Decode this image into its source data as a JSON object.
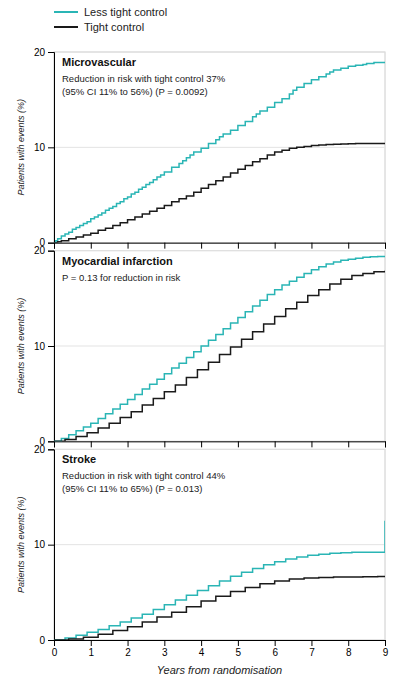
{
  "chart_data": [
    {
      "type": "line",
      "title": "Microvascular",
      "subtitle": [
        "Reduction in risk with tight control 37%",
        "(95% CI 11% to 56%) (P = 0.0092)"
      ],
      "ylabel": "Patients with events (%)",
      "xlim": [
        0,
        9
      ],
      "xticks": [
        0,
        1,
        2,
        3,
        4,
        5,
        6,
        7,
        8,
        9
      ],
      "ylim": [
        0,
        20
      ],
      "yticks": [
        0,
        10,
        20
      ],
      "grid": true,
      "tick_labels": "y",
      "line_style": "step",
      "series": [
        {
          "name": "Less tight control",
          "color": "#2ab5b5",
          "x": [
            0,
            0.05,
            0.1,
            0.2,
            0.3,
            0.4,
            0.5,
            0.6,
            0.7,
            0.8,
            0.9,
            1.0,
            1.1,
            1.2,
            1.3,
            1.4,
            1.5,
            1.6,
            1.7,
            1.8,
            1.9,
            2.0,
            2.1,
            2.2,
            2.3,
            2.4,
            2.5,
            2.6,
            2.7,
            2.8,
            2.9,
            3.0,
            3.2,
            3.4,
            3.5,
            3.6,
            3.7,
            3.8,
            4.0,
            4.2,
            4.4,
            4.5,
            4.6,
            4.8,
            5.0,
            5.2,
            5.4,
            5.5,
            5.6,
            5.8,
            6.0,
            6.2,
            6.4,
            6.5,
            6.6,
            6.8,
            7.0,
            7.2,
            7.4,
            7.5,
            7.6,
            7.8,
            8.0,
            8.2,
            8.4,
            8.5,
            8.7,
            8.9,
            9.0
          ],
          "values": [
            0,
            0.2,
            0.4,
            0.7,
            0.9,
            1.1,
            1.4,
            1.6,
            1.8,
            2.0,
            2.2,
            2.5,
            2.7,
            2.9,
            3.1,
            3.4,
            3.6,
            3.8,
            4.1,
            4.3,
            4.6,
            4.8,
            5.1,
            5.3,
            5.6,
            5.8,
            6.1,
            6.3,
            6.6,
            6.9,
            7.1,
            7.4,
            7.9,
            8.3,
            8.6,
            8.9,
            9.2,
            9.5,
            9.9,
            10.4,
            10.8,
            11.1,
            11.4,
            11.8,
            12.3,
            12.7,
            13.2,
            13.5,
            13.8,
            14.2,
            14.7,
            15.1,
            15.6,
            16.0,
            16.3,
            16.7,
            17.1,
            17.4,
            17.7,
            17.9,
            18.1,
            18.3,
            18.5,
            18.6,
            18.7,
            18.8,
            18.9,
            18.9,
            18.9
          ]
        },
        {
          "name": "Tight control",
          "color": "#1a1a1a",
          "x": [
            0,
            0.1,
            0.2,
            0.4,
            0.6,
            0.8,
            1.0,
            1.2,
            1.4,
            1.6,
            1.8,
            2.0,
            2.2,
            2.4,
            2.6,
            2.8,
            3.0,
            3.2,
            3.4,
            3.6,
            3.8,
            4.0,
            4.2,
            4.4,
            4.6,
            4.8,
            5.0,
            5.2,
            5.4,
            5.6,
            5.8,
            6.0,
            6.2,
            6.4,
            6.6,
            6.8,
            7.0,
            7.2,
            7.4,
            7.6,
            7.8,
            8.0,
            8.2,
            8.4,
            8.6,
            8.8,
            9.0
          ],
          "values": [
            0,
            0.1,
            0.2,
            0.4,
            0.6,
            0.8,
            1.0,
            1.3,
            1.5,
            1.8,
            2.1,
            2.4,
            2.7,
            3.0,
            3.3,
            3.6,
            3.9,
            4.3,
            4.6,
            4.9,
            5.3,
            5.7,
            6.1,
            6.5,
            6.9,
            7.3,
            7.7,
            8.1,
            8.5,
            8.8,
            9.2,
            9.5,
            9.7,
            9.9,
            10.0,
            10.1,
            10.2,
            10.25,
            10.3,
            10.32,
            10.35,
            10.38,
            10.4,
            10.4,
            10.4,
            10.4,
            10.4
          ]
        }
      ]
    },
    {
      "type": "line",
      "title": "Myocardial infarction",
      "subtitle": [
        "P = 0.13 for reduction in risk"
      ],
      "ylabel": "Patients with events (%)",
      "xlim": [
        0,
        9
      ],
      "xticks": [
        0,
        1,
        2,
        3,
        4,
        5,
        6,
        7,
        8,
        9
      ],
      "ylim": [
        0,
        20
      ],
      "yticks": [
        0,
        10,
        20
      ],
      "grid": true,
      "tick_labels": "y",
      "line_style": "step",
      "series": [
        {
          "name": "Less tight control",
          "color": "#2ab5b5",
          "x": [
            0,
            0.2,
            0.4,
            0.6,
            0.8,
            1.0,
            1.2,
            1.4,
            1.6,
            1.8,
            2.0,
            2.2,
            2.4,
            2.6,
            2.8,
            3.0,
            3.2,
            3.4,
            3.6,
            3.8,
            4.0,
            4.2,
            4.4,
            4.6,
            4.8,
            5.0,
            5.2,
            5.4,
            5.6,
            5.8,
            6.0,
            6.2,
            6.4,
            6.6,
            6.8,
            7.0,
            7.2,
            7.4,
            7.6,
            7.8,
            8.0,
            8.2,
            8.4,
            8.6,
            8.8,
            9.0
          ],
          "values": [
            0,
            0.3,
            0.7,
            1.1,
            1.5,
            1.9,
            2.4,
            2.9,
            3.4,
            3.9,
            4.4,
            4.9,
            5.5,
            6.0,
            6.5,
            7.1,
            7.7,
            8.2,
            8.8,
            9.4,
            10.0,
            10.6,
            11.2,
            11.8,
            12.4,
            13.0,
            13.6,
            14.2,
            14.8,
            15.4,
            15.9,
            16.4,
            16.8,
            17.2,
            17.6,
            18.0,
            18.3,
            18.6,
            18.8,
            19.0,
            19.1,
            19.2,
            19.3,
            19.35,
            19.4,
            19.4
          ]
        },
        {
          "name": "Tight control",
          "color": "#1a1a1a",
          "x": [
            0,
            0.3,
            0.6,
            0.9,
            1.2,
            1.5,
            1.8,
            2.1,
            2.4,
            2.7,
            3.0,
            3.3,
            3.6,
            3.9,
            4.2,
            4.5,
            4.8,
            5.1,
            5.4,
            5.7,
            6.0,
            6.3,
            6.6,
            6.9,
            7.2,
            7.5,
            7.8,
            8.1,
            8.4,
            8.7,
            9.0
          ],
          "values": [
            0,
            0.2,
            0.5,
            0.9,
            1.4,
            1.9,
            2.5,
            3.1,
            3.8,
            4.5,
            5.2,
            5.9,
            6.7,
            7.5,
            8.3,
            9.1,
            9.9,
            10.7,
            11.5,
            12.3,
            13.1,
            13.9,
            14.6,
            15.3,
            15.9,
            16.5,
            17.0,
            17.4,
            17.6,
            17.8,
            17.9
          ]
        }
      ]
    },
    {
      "type": "line",
      "title": "Stroke",
      "subtitle": [
        "Reduction in risk with tight control 44%",
        "(95% CI 11% to 65%) (P = 0.013)"
      ],
      "ylabel": "Patients with events (%)",
      "xlabel": "Years from randomisation",
      "xlim": [
        0,
        9
      ],
      "xticks": [
        0,
        1,
        2,
        3,
        4,
        5,
        6,
        7,
        8,
        9
      ],
      "ylim": [
        0,
        20
      ],
      "yticks": [
        0,
        10,
        20
      ],
      "grid": true,
      "line_style": "step",
      "series": [
        {
          "name": "Less tight control",
          "color": "#2ab5b5",
          "x": [
            0,
            0.3,
            0.6,
            0.9,
            1.2,
            1.5,
            1.8,
            2.1,
            2.4,
            2.7,
            3.0,
            3.3,
            3.6,
            3.9,
            4.2,
            4.5,
            4.8,
            5.1,
            5.4,
            5.7,
            6.0,
            6.3,
            6.6,
            6.9,
            7.2,
            7.5,
            7.8,
            8.1,
            8.4,
            8.7,
            8.9,
            9.0
          ],
          "values": [
            0,
            0.2,
            0.5,
            0.8,
            1.1,
            1.5,
            1.9,
            2.3,
            2.7,
            3.2,
            3.7,
            4.2,
            4.7,
            5.2,
            5.7,
            6.2,
            6.7,
            7.1,
            7.5,
            7.9,
            8.2,
            8.5,
            8.7,
            8.9,
            9.0,
            9.1,
            9.15,
            9.2,
            9.2,
            9.2,
            9.2,
            12.5
          ]
        },
        {
          "name": "Tight control",
          "color": "#1a1a1a",
          "x": [
            0,
            0.4,
            0.8,
            1.2,
            1.6,
            2.0,
            2.4,
            2.8,
            3.2,
            3.6,
            4.0,
            4.4,
            4.8,
            5.2,
            5.6,
            6.0,
            6.4,
            6.8,
            7.2,
            7.6,
            8.0,
            8.4,
            8.8,
            9.0
          ],
          "values": [
            0,
            0.1,
            0.3,
            0.6,
            1.0,
            1.4,
            1.9,
            2.4,
            2.9,
            3.5,
            4.1,
            4.6,
            5.1,
            5.5,
            5.9,
            6.2,
            6.4,
            6.5,
            6.55,
            6.6,
            6.62,
            6.64,
            6.65,
            6.65
          ]
        }
      ]
    }
  ]
}
